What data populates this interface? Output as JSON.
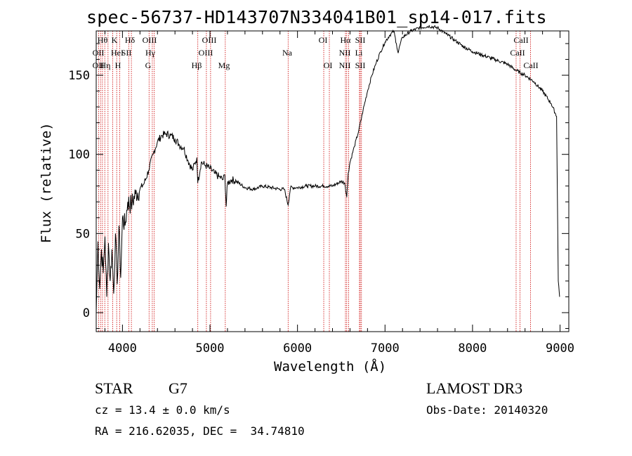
{
  "chart_data": {
    "type": "line",
    "title": "spec-56737-HD143707N334041B01_sp14-017.fits",
    "xlabel": "Wavelength (Å)",
    "ylabel": "Flux (relative)",
    "xlim": [
      3700,
      9100
    ],
    "ylim": [
      -12,
      178
    ],
    "xticks": [
      4000,
      5000,
      6000,
      7000,
      8000,
      9000
    ],
    "yticks": [
      0,
      50,
      100,
      150
    ],
    "grid": false,
    "series": [
      {
        "name": "flux",
        "x": [
          3700,
          3720,
          3740,
          3760,
          3780,
          3800,
          3820,
          3840,
          3860,
          3880,
          3900,
          3920,
          3940,
          3960,
          3980,
          4000,
          4030,
          4060,
          4100,
          4150,
          4200,
          4250,
          4300,
          4350,
          4400,
          4450,
          4500,
          4550,
          4600,
          4650,
          4700,
          4750,
          4800,
          4850,
          4860,
          4900,
          4950,
          5000,
          5050,
          5100,
          5150,
          5170,
          5185,
          5200,
          5250,
          5300,
          5400,
          5500,
          5600,
          5700,
          5800,
          5850,
          5893,
          5920,
          6000,
          6100,
          6200,
          6300,
          6400,
          6500,
          6540,
          6563,
          6580,
          6600,
          6650,
          6700,
          6750,
          6800,
          6850,
          6900,
          6950,
          7000,
          7050,
          7100,
          7130,
          7150,
          7170,
          7200,
          7300,
          7400,
          7500,
          7600,
          7700,
          7800,
          7900,
          8000,
          8100,
          8200,
          8300,
          8400,
          8500,
          8600,
          8700,
          8800,
          8900,
          8960,
          8980,
          8995
        ],
        "y": [
          0,
          45,
          15,
          40,
          25,
          48,
          10,
          44,
          20,
          40,
          12,
          50,
          18,
          55,
          22,
          60,
          55,
          70,
          68,
          75,
          78,
          82,
          90,
          100,
          108,
          112,
          113,
          112,
          110,
          106,
          104,
          96,
          90,
          98,
          82,
          95,
          93,
          91,
          88,
          86,
          84,
          87,
          67,
          82,
          84,
          83,
          79,
          78,
          80,
          79,
          78,
          78,
          68,
          79,
          79,
          80,
          80,
          80,
          80,
          83,
          82,
          73,
          88,
          95,
          105,
          115,
          128,
          140,
          150,
          158,
          165,
          171,
          175,
          178,
          170,
          164,
          169,
          174,
          178,
          180,
          181,
          180,
          176,
          172,
          168,
          165,
          163,
          161,
          159,
          157,
          153,
          150,
          146,
          140,
          132,
          124,
          20,
          10
        ]
      }
    ],
    "lines": [
      {
        "wave": 3727,
        "labels": [
          "OII"
        ]
      },
      {
        "wave": 3750,
        "labels": [
          "OII"
        ]
      },
      {
        "wave": 3771,
        "labels": [
          "Hθ"
        ]
      },
      {
        "wave": 3798,
        "labels": [
          "Hη"
        ]
      },
      {
        "wave": 3835,
        "labels": [
          "HeI"
        ]
      },
      {
        "wave": 3889,
        "labels": [
          "HeI"
        ]
      },
      {
        "wave": 3934,
        "labels": [
          "K"
        ]
      },
      {
        "wave": 3969,
        "labels": [
          "H"
        ]
      },
      {
        "wave": 4072,
        "labels": [
          "SII"
        ]
      },
      {
        "wave": 4102,
        "labels": [
          "Hδ"
        ]
      },
      {
        "wave": 4304,
        "labels": [
          "G"
        ]
      },
      {
        "wave": 4341,
        "labels": [
          "Hγ"
        ]
      },
      {
        "wave": 4363,
        "labels": [
          "OIII"
        ]
      },
      {
        "wave": 4861,
        "labels": [
          "Hβ"
        ]
      },
      {
        "wave": 4959,
        "labels": [
          "OIII"
        ]
      },
      {
        "wave": 5007,
        "labels": [
          "OIII"
        ]
      },
      {
        "wave": 5175,
        "labels": [
          "Mg"
        ]
      },
      {
        "wave": 5893,
        "labels": [
          "Na"
        ]
      },
      {
        "wave": 6300,
        "labels": [
          "OI"
        ]
      },
      {
        "wave": 6364,
        "labels": [
          "OI"
        ]
      },
      {
        "wave": 6548,
        "labels": [
          "NII"
        ]
      },
      {
        "wave": 6563,
        "labels": [
          "Hα"
        ]
      },
      {
        "wave": 6584,
        "labels": [
          "NII"
        ]
      },
      {
        "wave": 6708,
        "labels": [
          "Li"
        ]
      },
      {
        "wave": 6717,
        "labels": [
          "SII"
        ]
      },
      {
        "wave": 6731,
        "labels": [
          "SII"
        ]
      },
      {
        "wave": 8498,
        "labels": [
          "CaII"
        ]
      },
      {
        "wave": 8542,
        "labels": [
          "CaII"
        ]
      },
      {
        "wave": 8662,
        "labels": [
          "CaII"
        ]
      }
    ],
    "line_label_groups": [
      {
        "row": 1,
        "items": [
          "Hθ",
          "K",
          "Hδ",
          "OIII",
          "OIII",
          "OI",
          "Hα",
          "SII",
          "CaII"
        ]
      },
      {
        "row": 2,
        "items": [
          "OII",
          "HeI",
          "SII",
          "Hγ",
          "OIII",
          "Na",
          "NII",
          "Li",
          "CaII"
        ]
      },
      {
        "row": 3,
        "items": [
          "OII",
          "Hη",
          "H",
          "G",
          "Hβ",
          "Mg",
          "OI",
          "NII",
          "SII",
          "CaII"
        ]
      }
    ],
    "line_color": "#000000",
    "marker_color": "#cc0000"
  },
  "info": {
    "object_type": "STAR",
    "subclass": "G7",
    "survey": "LAMOST DR3",
    "cz": "cz = 13.4 ± 0.0 km/s",
    "obs_date": "Obs-Date: 20140320",
    "coords": "RA = 216.62035, DEC =  34.74810"
  }
}
